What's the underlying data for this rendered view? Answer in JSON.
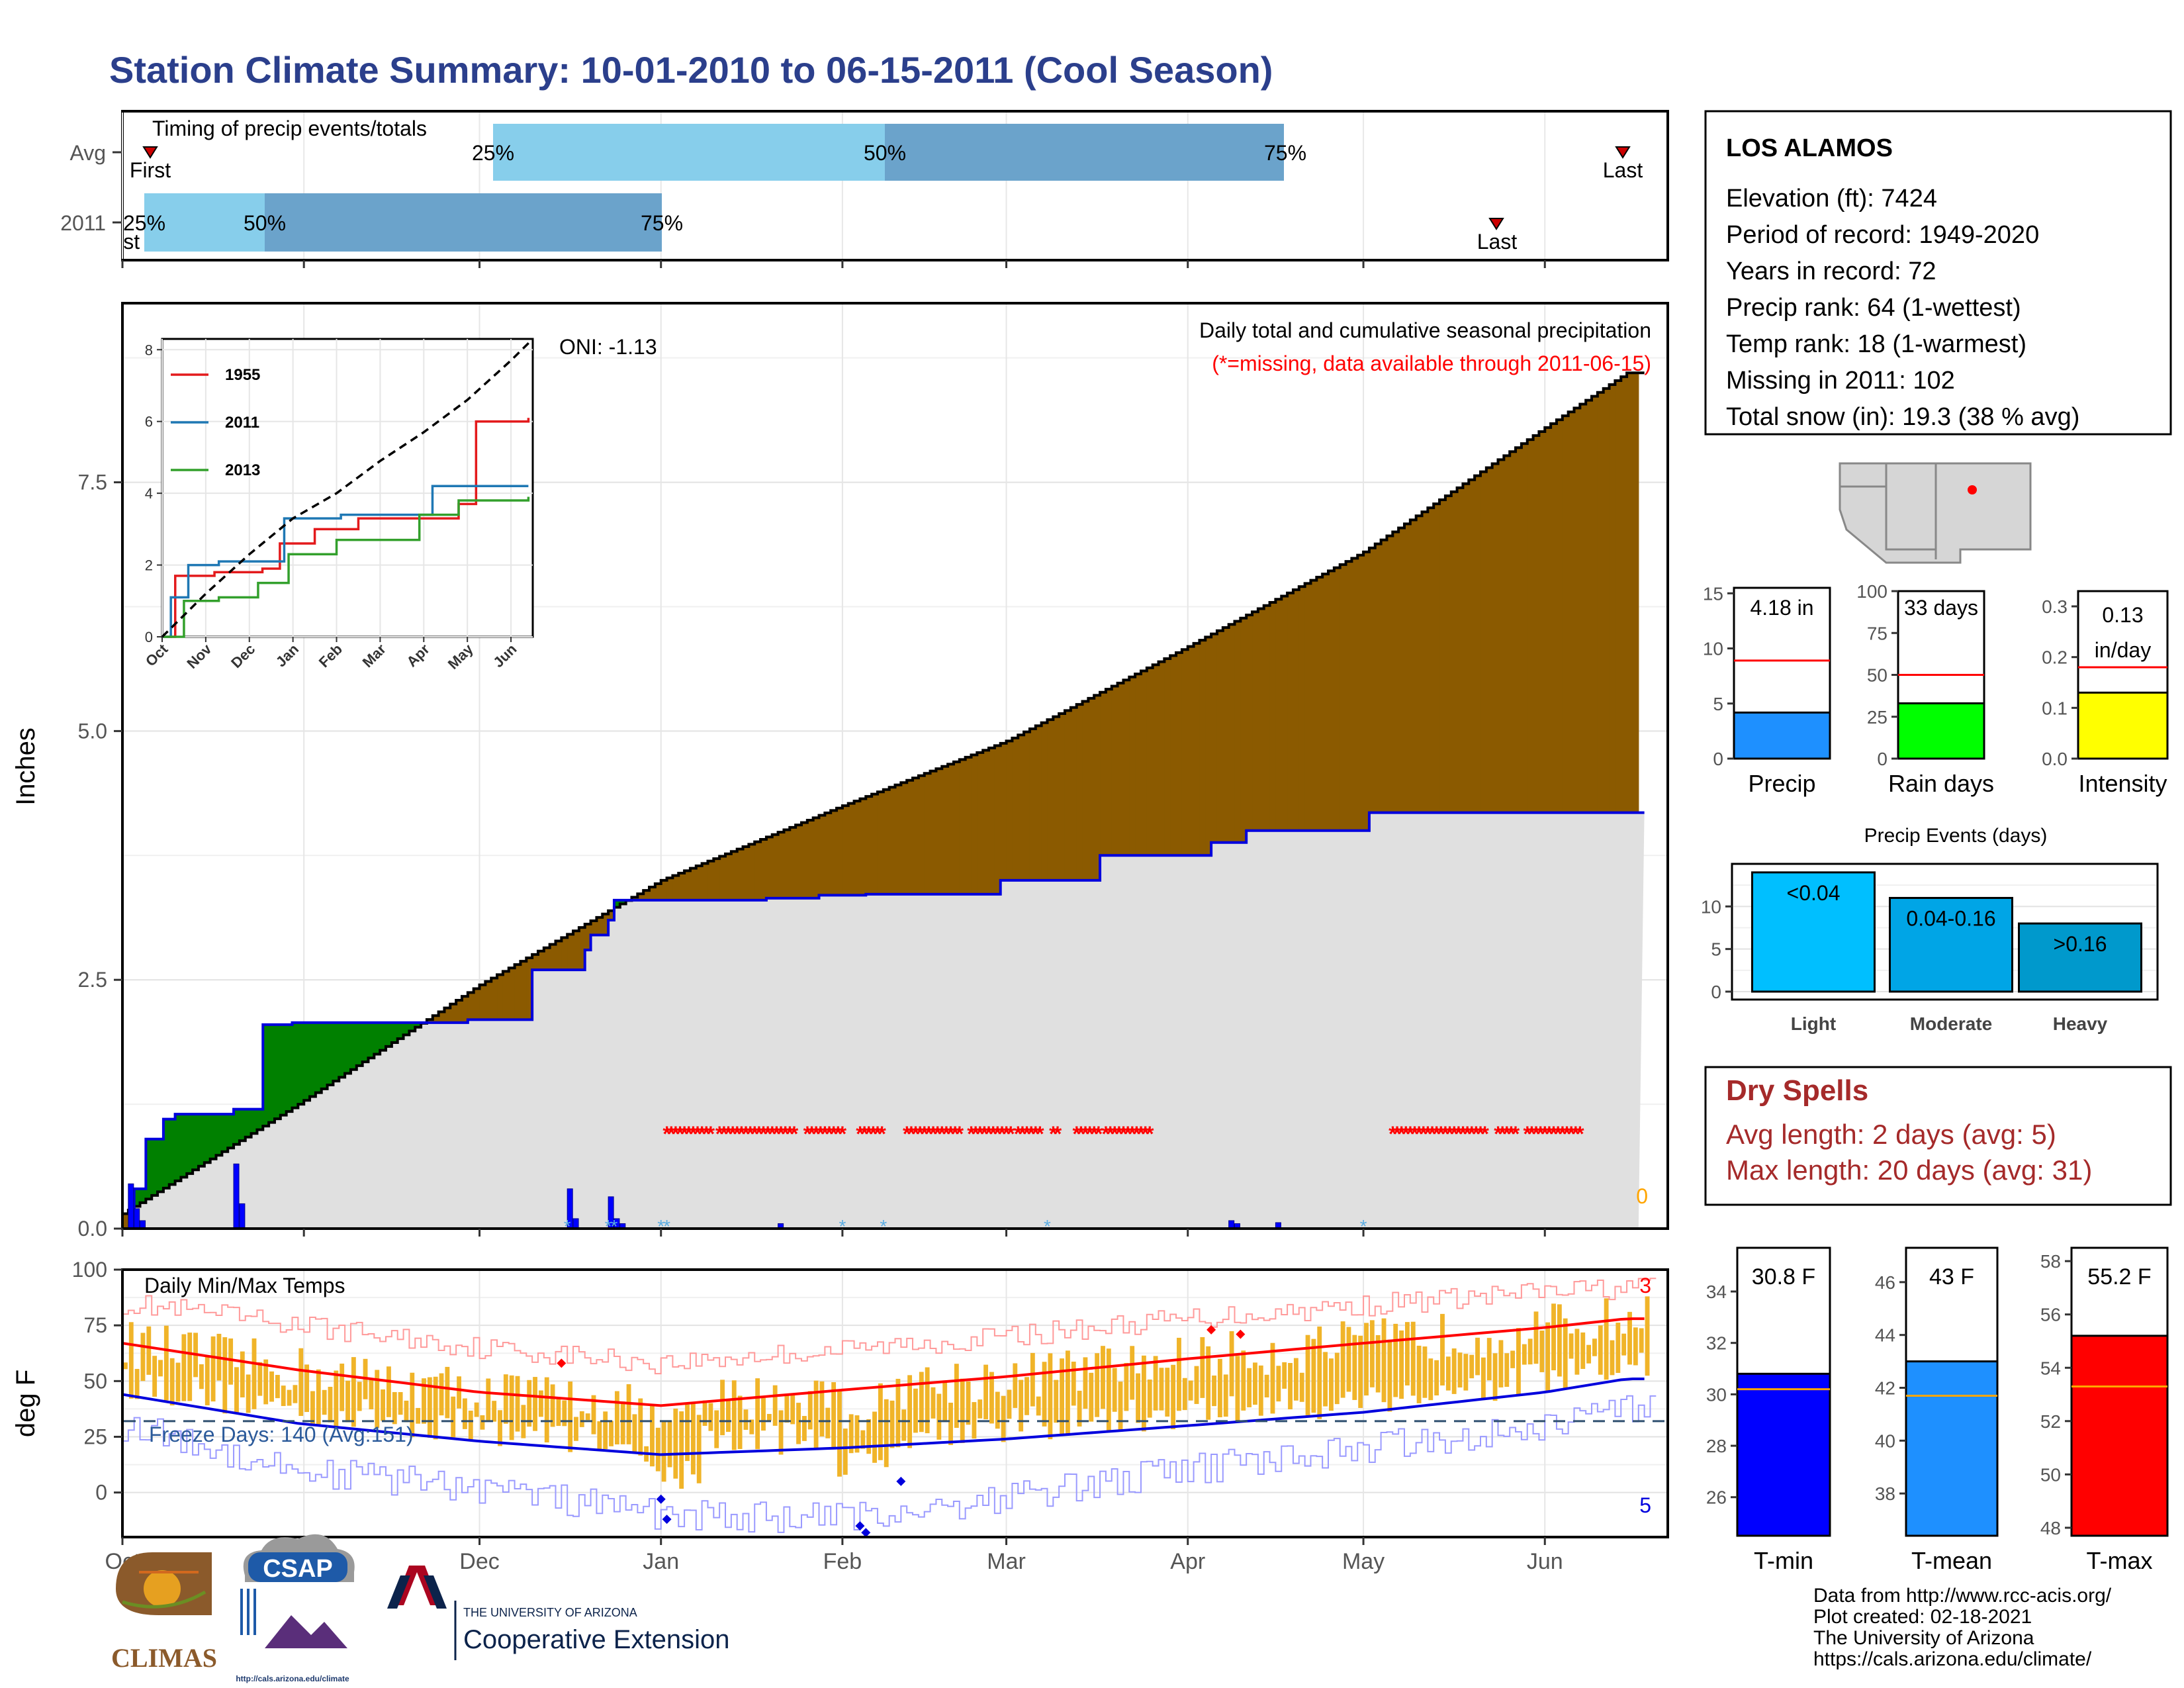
{
  "title": "Station Climate Summary: 10-01-2010 to 06-15-2011 (Cool Season)",
  "colors": {
    "title": "#2B3F8C",
    "cum_fill": "#8B5A00",
    "cum_line": "#000000",
    "obs_line": "#0000DD",
    "grey_fill": "#E0E0E0",
    "green_fill": "#008000",
    "missing": "#FF0000",
    "bar_light": "#87CEEB",
    "bar_dark": "#6BA3CB",
    "temp_bar": "#F0B429",
    "tmax_line": "#FF0000",
    "tmin_line": "#0000DD",
    "freeze_line": "#2F4F6F",
    "dry_spells": "#A52A2A",
    "precip_bar": "#1E90FF",
    "rain_bar": "#00FF00",
    "intensity_bar": "#FFFF00",
    "events_light": "#00BFFF",
    "events_mod": "#00A5E6",
    "events_heavy": "#0099CC",
    "tmin_bar": "#0000FF",
    "tmean_bar": "#1E90FF",
    "tmax_bar": "#FF0000",
    "avg_line": "#FF0000",
    "avg_line_temp": "#FFA500"
  },
  "timing": {
    "title": "Timing of precip events/totals",
    "rows": [
      "Avg",
      "2011"
    ],
    "avg": {
      "first": "First",
      "last": "Last",
      "p25": "25%",
      "p50": "50%",
      "p75": "75%"
    },
    "y2011": {
      "first": "First",
      "last": "Last",
      "p25": "25%",
      "p50": "50%",
      "p75": "75%"
    },
    "chart_data": {
      "type": "bar",
      "series": [
        {
          "name": "Avg",
          "first_day": 6,
          "p25_day": 82,
          "p50_day": 162,
          "p75_day": 244,
          "last_day": 306
        },
        {
          "name": "2011",
          "first_day": 5,
          "p25_day": 5,
          "p50_day": 30,
          "p75_day": 111,
          "last_day": 280
        }
      ]
    }
  },
  "main": {
    "ylabel": "Inches",
    "oni": "ONI: -1.13",
    "desc1": "Daily total and cumulative seasonal precipitation",
    "desc2": "(*=missing, data available through 2011-06-15)",
    "corner_count": "0",
    "yticks": [
      "0.0",
      "2.5",
      "5.0",
      "7.5"
    ],
    "xticks": [
      "Oct",
      "Nov",
      "Dec",
      "Jan",
      "Feb",
      "Mar",
      "Apr",
      "May",
      "Jun"
    ],
    "chart_data": {
      "type": "area",
      "xlabel": "",
      "ylabel": "Inches",
      "ylim": [
        0,
        9.3
      ],
      "x_dates": [
        "2010-10-01",
        "2011-06-15"
      ],
      "avg_cumulative": {
        "x_day": [
          0,
          30,
          61,
          92,
          123,
          151,
          182,
          212,
          243,
          257
        ],
        "y": [
          0.15,
          1.25,
          2.45,
          3.5,
          4.25,
          4.9,
          5.85,
          6.8,
          8.05,
          8.6
        ]
      },
      "obs_cumulative": {
        "x_day": [
          0,
          2,
          4,
          7,
          9,
          13,
          19,
          24,
          29,
          59,
          69,
          70,
          79,
          80,
          83,
          84,
          85,
          88,
          97,
          110,
          119,
          127,
          150,
          167,
          186,
          192,
          213,
          216,
          222,
          238,
          257
        ],
        "y": [
          0.0,
          0.4,
          0.9,
          1.1,
          1.15,
          1.15,
          1.2,
          2.05,
          2.07,
          2.1,
          2.1,
          2.6,
          2.8,
          2.95,
          3.1,
          3.3,
          3.3,
          3.3,
          3.3,
          3.32,
          3.35,
          3.36,
          3.5,
          3.75,
          3.88,
          4.0,
          4.18,
          4.18,
          4.18,
          4.18,
          4.18
        ]
      },
      "daily_bars": {
        "x_day": [
          1,
          2,
          3,
          19,
          20,
          76,
          77,
          83,
          84,
          85,
          112,
          189,
          190,
          197
        ],
        "y": [
          0.45,
          0.2,
          0.08,
          0.65,
          0.25,
          0.4,
          0.1,
          0.32,
          0.1,
          0.05,
          0.05,
          0.08,
          0.05,
          0.06
        ]
      },
      "missing_days": "runs marked * from Jan to mid-Mar and May to early Jun"
    }
  },
  "inset": {
    "yticks": [
      "0",
      "2",
      "4",
      "6",
      "8"
    ],
    "xticks": [
      "Oct",
      "Nov",
      "Dec",
      "Jan",
      "Feb",
      "Mar",
      "Apr",
      "May",
      "Jun"
    ],
    "legend": [
      "1955",
      "2011",
      "2013"
    ],
    "chart_data": {
      "type": "line",
      "ylim": [
        0,
        8.3
      ],
      "series": [
        {
          "name": "1955",
          "x_month": [
            0,
            0.3,
            1.2,
            2.3,
            2.7,
            3.5,
            4.5,
            6.8,
            7.2,
            8.4
          ],
          "y": [
            0,
            1.7,
            1.8,
            1.9,
            2.6,
            3.0,
            3.3,
            3.7,
            6.0,
            6.1
          ]
        },
        {
          "name": "2011",
          "x_month": [
            0,
            0.2,
            0.6,
            1.3,
            2.8,
            4.1,
            6.2,
            8.4
          ],
          "y": [
            0,
            1.1,
            2.0,
            2.1,
            3.3,
            3.4,
            4.2,
            4.2
          ]
        },
        {
          "name": "2013",
          "x_month": [
            0,
            0.5,
            1.3,
            2.2,
            2.9,
            4.0,
            5.9,
            6.8,
            8.4
          ],
          "y": [
            0,
            1.0,
            1.1,
            1.5,
            2.3,
            2.7,
            3.4,
            3.8,
            3.9
          ]
        },
        {
          "name": "avg",
          "x_month": [
            0,
            1,
            2,
            3,
            4,
            5,
            6,
            7,
            8,
            8.5
          ],
          "y": [
            0,
            1.2,
            2.3,
            3.3,
            4.0,
            4.9,
            5.7,
            6.6,
            7.7,
            8.3
          ]
        }
      ]
    }
  },
  "temps": {
    "title": "Daily Min/Max Temps",
    "ylabel": "deg F",
    "freeze": "Freeze Days: 140 (Avg:151)",
    "count_top": "3",
    "count_bottom": "5",
    "yticks": [
      "0",
      "25",
      "50",
      "75",
      "100"
    ],
    "xticks": [
      "Oct",
      "Nov",
      "Dec",
      "Jan",
      "Feb",
      "Mar",
      "Apr",
      "May",
      "Jun"
    ],
    "chart_data": {
      "type": "bar",
      "ylim": [
        -20,
        100
      ],
      "freeze_line": 32,
      "tmax_avg": {
        "x_day": [
          0,
          30,
          61,
          92,
          123,
          151,
          182,
          212,
          243,
          257
        ],
        "y": [
          67,
          55,
          45,
          39,
          46,
          52,
          60,
          67,
          74,
          78
        ]
      },
      "tmin_avg": {
        "x_day": [
          0,
          30,
          61,
          92,
          123,
          151,
          182,
          212,
          243,
          257
        ],
        "y": [
          44,
          31,
          23,
          17,
          20,
          24,
          30,
          36,
          45,
          51
        ]
      },
      "rec_high": {
        "x_day": [
          0,
          30,
          61,
          92,
          123,
          151,
          182,
          212,
          243,
          257
        ],
        "y": [
          85,
          75,
          65,
          58,
          64,
          70,
          78,
          84,
          90,
          92
        ]
      },
      "rec_low": {
        "x_day": [
          0,
          30,
          61,
          92,
          123,
          151,
          182,
          212,
          243,
          257
        ],
        "y": [
          30,
          10,
          2,
          -10,
          -12,
          -2,
          10,
          20,
          30,
          38
        ]
      }
    }
  },
  "station": {
    "name": "LOS ALAMOS",
    "lines": [
      "Elevation (ft): 7424",
      "Period of record: 1949-2020",
      "Years in record: 72",
      "Precip rank: 64 (1-wettest)",
      "Temp rank: 18 (1-warmest)",
      "Missing in 2011: 102",
      "Total snow (in): 19.3 (38 % avg)"
    ]
  },
  "minicharts": {
    "precip": {
      "label": "Precip",
      "value_text": "4.18 in",
      "yticks": [
        "0",
        "5",
        "10",
        "15"
      ],
      "chart_data": {
        "type": "bar",
        "value": 4.18,
        "avg": 8.9,
        "ylim": [
          0,
          15.5
        ]
      }
    },
    "rain": {
      "label": "Rain days",
      "value_text": "33 days",
      "yticks": [
        "0",
        "25",
        "50",
        "75",
        "100"
      ],
      "chart_data": {
        "type": "bar",
        "value": 33,
        "avg": 50,
        "ylim": [
          0,
          100
        ]
      }
    },
    "intensity": {
      "label": "Intensity",
      "value_text1": "0.13",
      "value_text2": "in/day",
      "yticks": [
        "0.0",
        "0.1",
        "0.2",
        "0.3"
      ],
      "chart_data": {
        "type": "bar",
        "value": 0.13,
        "avg": 0.18,
        "ylim": [
          0,
          0.3
        ]
      }
    }
  },
  "events": {
    "title": "Precip Events (days)",
    "yticks": [
      "0",
      "5",
      "10"
    ],
    "chart_data": {
      "type": "bar",
      "categories": [
        "Light",
        "Moderate",
        "Heavy"
      ],
      "bar_labels": [
        "<0.04",
        "0.04-0.16",
        ">0.16"
      ],
      "values": [
        14,
        11,
        8
      ],
      "ylim": [
        0,
        15
      ]
    }
  },
  "dry": {
    "title": "Dry Spells",
    "line1": "Avg length: 2 days (avg: 5)",
    "line2": "Max length: 20 days (avg: 31)"
  },
  "tempbars": {
    "tmin": {
      "label": "T-min",
      "value_text": "30.8 F",
      "yticks": [
        "26",
        "28",
        "30",
        "32",
        "34"
      ],
      "chart_data": {
        "type": "bar",
        "value": 30.8,
        "avg": 30.2,
        "ylim": [
          24.5,
          35.7
        ]
      }
    },
    "tmean": {
      "label": "T-mean",
      "value_text": "43 F",
      "yticks": [
        "38",
        "40",
        "42",
        "44",
        "46"
      ],
      "chart_data": {
        "type": "bar",
        "value": 43.0,
        "avg": 41.7,
        "ylim": [
          36.4,
          47.3
        ]
      }
    },
    "tmax": {
      "label": "T-max",
      "value_text": "55.2 F",
      "yticks": [
        "48",
        "50",
        "52",
        "54",
        "56",
        "58"
      ],
      "chart_data": {
        "type": "bar",
        "value": 55.2,
        "avg": 53.3,
        "ylim": [
          47.7,
          58.5
        ]
      }
    }
  },
  "credits": [
    "Data from http://www.rcc-acis.org/",
    "Plot created: 02-18-2021",
    "The University of Arizona",
    "https://cals.arizona.edu/climate/"
  ],
  "logos": {
    "climas": "CLIMAS",
    "csap": "CSAP",
    "csap_url": "http://cals.arizona.edu/climate",
    "ua_small": "THE UNIVERSITY OF ARIZONA",
    "ua_big": "Cooperative Extension"
  }
}
